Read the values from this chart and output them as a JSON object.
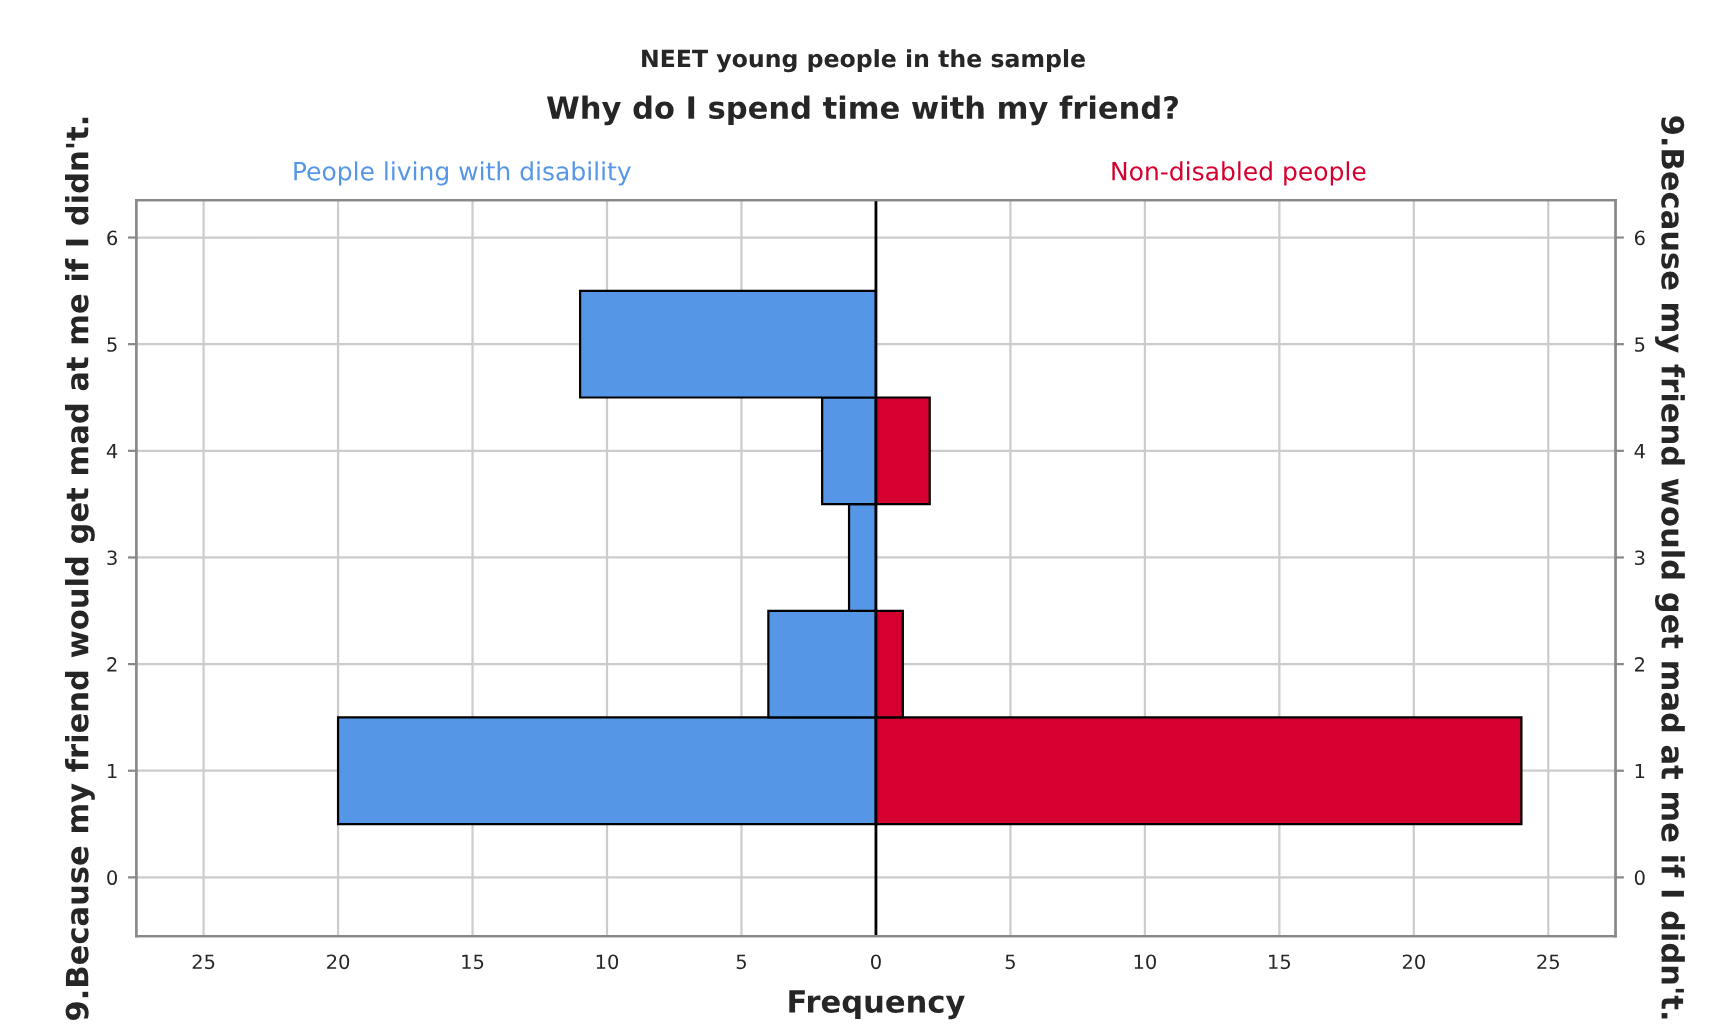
{
  "chart_data": {
    "type": "bar",
    "orientation": "horizontal",
    "subtitle": "NEET young people in the sample",
    "title": "Why do I spend time with my friend?",
    "xlabel": "Frequency",
    "ylabel": "9.Because my friend would get mad at me if I didn't.",
    "y2label": "9.Because my friend would get mad at me if I didn't.",
    "x": [
      1,
      2,
      3,
      4,
      5
    ],
    "series": [
      {
        "name": "People living with disability",
        "color": "#5596e6",
        "values": [
          -20,
          -4,
          -1,
          -2,
          -11
        ]
      },
      {
        "name": "Non-disabled people",
        "color": "#d5002f",
        "values": [
          24,
          1,
          null,
          2,
          null
        ]
      }
    ],
    "xlim": [
      -27.5,
      27.5
    ],
    "xticks": [
      {
        "value": -25,
        "label": "25"
      },
      {
        "value": -20,
        "label": "20"
      },
      {
        "value": -15,
        "label": "15"
      },
      {
        "value": -10,
        "label": "10"
      },
      {
        "value": -5,
        "label": "5"
      },
      0,
      5,
      10,
      15,
      20,
      25
    ],
    "ylim": [
      -0.55,
      6.35
    ],
    "yticks": [
      0,
      1,
      2,
      3,
      4,
      5,
      6
    ],
    "y2lim": [
      -0.55,
      6.35
    ],
    "y2ticks": [
      0,
      1,
      2,
      3,
      4,
      5,
      6
    ],
    "ref_lines": [
      {
        "axis": "x",
        "value": 0,
        "color": "#000000"
      }
    ],
    "grid": true,
    "legend": false,
    "stacked": true
  }
}
